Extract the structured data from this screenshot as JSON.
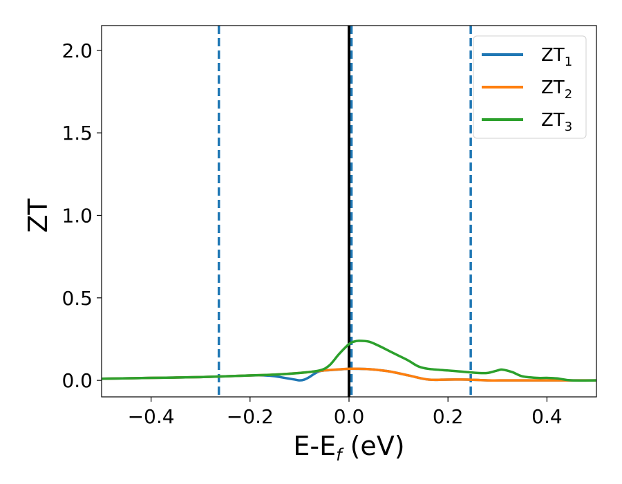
{
  "chart_data": {
    "type": "line",
    "title": "",
    "xlabel": "E-E",
    "xlabel_sub": "f",
    "xlabel_unit": " (eV)",
    "ylabel": "ZT",
    "xlim": [
      -0.5,
      0.5
    ],
    "ylim": [
      -0.1,
      2.15
    ],
    "x_ticks": [
      -0.4,
      -0.2,
      0.0,
      0.2,
      0.4
    ],
    "x_tick_labels": [
      "−0.4",
      "−0.2",
      "0.0",
      "0.2",
      "0.4"
    ],
    "y_ticks": [
      0.0,
      0.5,
      1.0,
      1.5,
      2.0
    ],
    "y_tick_labels": [
      "0.0",
      "0.5",
      "1.0",
      "1.5",
      "2.0"
    ],
    "grid": false,
    "legend_position": "top-right",
    "vertical_lines": [
      {
        "x": -0.263,
        "style": "dashed",
        "color": "#1f77b4"
      },
      {
        "x": 0.005,
        "style": "dashed",
        "color": "#1f77b4"
      },
      {
        "x": 0.246,
        "style": "dashed",
        "color": "#1f77b4"
      },
      {
        "x": 0.0,
        "style": "solid",
        "color": "#000000"
      }
    ],
    "series": [
      {
        "name": "ZT",
        "name_sub": "1",
        "color": "#1f77b4",
        "x": [
          -0.5,
          -0.4,
          -0.3,
          -0.2,
          -0.17,
          -0.15,
          -0.13,
          -0.11,
          -0.1,
          -0.09,
          -0.08,
          -0.07,
          -0.06,
          -0.05,
          -0.04,
          -0.02,
          0.0,
          0.02,
          0.04,
          0.08,
          0.12,
          0.16,
          0.2,
          0.24,
          0.28,
          0.32,
          0.36,
          0.4,
          0.45,
          0.5
        ],
        "y": [
          0.01,
          0.015,
          0.02,
          0.03,
          0.03,
          0.025,
          0.015,
          0.005,
          0.0,
          0.005,
          0.02,
          0.04,
          0.055,
          0.06,
          0.062,
          0.066,
          0.07,
          0.07,
          0.068,
          0.055,
          0.03,
          0.005,
          0.005,
          0.005,
          0.0,
          0.0,
          0.0,
          0.0,
          0.0,
          0.0
        ]
      },
      {
        "name": "ZT",
        "name_sub": "2",
        "color": "#ff7f0e",
        "x": [
          -0.5,
          -0.4,
          -0.3,
          -0.2,
          -0.15,
          -0.1,
          -0.05,
          0.0,
          0.02,
          0.04,
          0.08,
          0.12,
          0.16,
          0.2,
          0.24,
          0.28,
          0.32,
          0.36,
          0.4,
          0.45,
          0.5
        ],
        "y": [
          0.01,
          0.015,
          0.02,
          0.03,
          0.035,
          0.045,
          0.06,
          0.07,
          0.07,
          0.068,
          0.055,
          0.03,
          0.005,
          0.005,
          0.005,
          0.0,
          0.0,
          0.0,
          0.0,
          0.0,
          0.0
        ]
      },
      {
        "name": "ZT",
        "name_sub": "3",
        "color": "#2ca02c",
        "x": [
          -0.5,
          -0.4,
          -0.3,
          -0.2,
          -0.15,
          -0.1,
          -0.06,
          -0.04,
          -0.02,
          0.0,
          0.01,
          0.02,
          0.04,
          0.06,
          0.08,
          0.1,
          0.12,
          0.14,
          0.16,
          0.2,
          0.22,
          0.24,
          0.26,
          0.28,
          0.3,
          0.31,
          0.33,
          0.35,
          0.38,
          0.4,
          0.42,
          0.45,
          0.5
        ],
        "y": [
          0.01,
          0.015,
          0.02,
          0.03,
          0.035,
          0.045,
          0.06,
          0.09,
          0.16,
          0.22,
          0.235,
          0.24,
          0.235,
          0.21,
          0.18,
          0.15,
          0.12,
          0.085,
          0.07,
          0.06,
          0.055,
          0.05,
          0.045,
          0.045,
          0.06,
          0.065,
          0.05,
          0.025,
          0.015,
          0.015,
          0.012,
          0.0,
          0.0
        ]
      }
    ]
  }
}
